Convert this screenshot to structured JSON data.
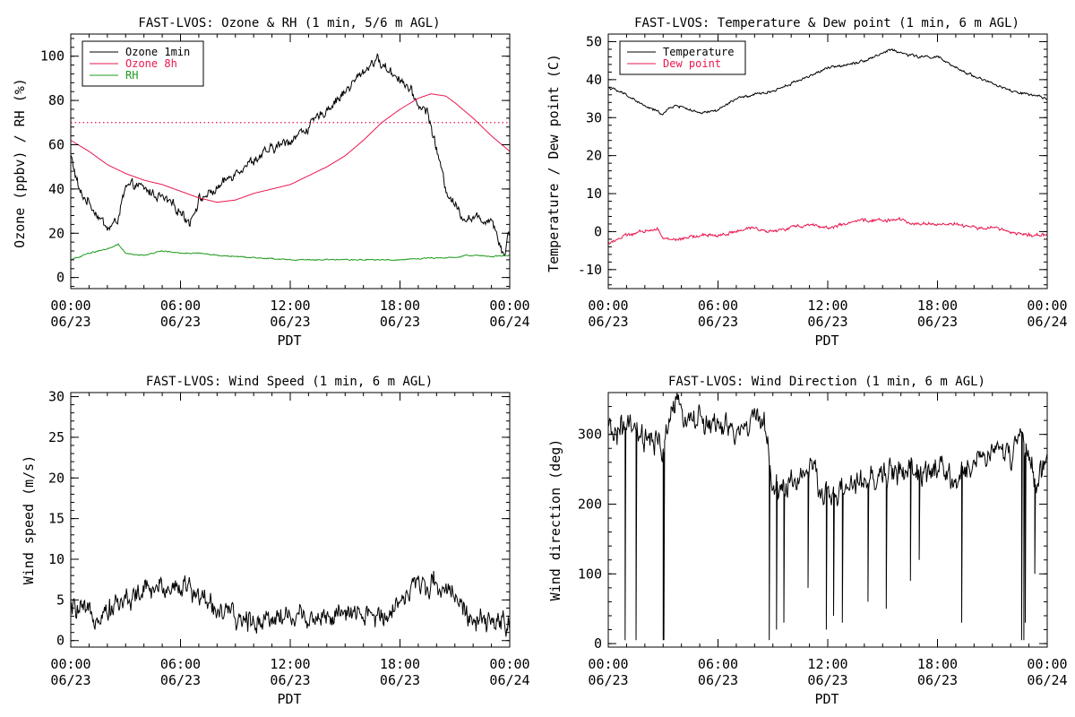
{
  "colors": {
    "black": "#000000",
    "crimson": "#e8174d",
    "green": "#1f9a1f"
  },
  "x_ticks": [
    {
      "t": 0,
      "time": "00:00",
      "date": "06/23"
    },
    {
      "t": 6,
      "time": "06:00",
      "date": "06/23"
    },
    {
      "t": 12,
      "time": "12:00",
      "date": "06/23"
    },
    {
      "t": 18,
      "time": "18:00",
      "date": "06/23"
    },
    {
      "t": 24,
      "time": "00:00",
      "date": "06/24"
    }
  ],
  "chart_data": [
    {
      "id": "ozone",
      "type": "line",
      "title": "FAST-LVOS: Ozone & RH (1 min, 5/6 m AGL)",
      "xlabel": "PDT",
      "ylabel": "Ozone (ppbv) / RH (%)",
      "xlim": [
        0,
        24
      ],
      "ylim": [
        -5,
        110
      ],
      "yticks": [
        0,
        20,
        40,
        60,
        80,
        100
      ],
      "legend_position": "top-left",
      "reference_lines": [
        {
          "y": 70,
          "color": "#e8174d",
          "style": "dotted"
        }
      ],
      "series": [
        {
          "name": "Ozone 1min",
          "color": "#000000",
          "noise": 2.5,
          "x": [
            0,
            0.5,
            1,
            1.5,
            2,
            2.5,
            3,
            3.5,
            4,
            5,
            6,
            6.5,
            7,
            8,
            9,
            10,
            11,
            12,
            13,
            14,
            15,
            16,
            16.7,
            17,
            18,
            18.5,
            19,
            19.5,
            20,
            20.5,
            21,
            21.5,
            22,
            22.5,
            23,
            23.7,
            24
          ],
          "y": [
            55,
            38,
            34,
            28,
            22,
            25,
            40,
            42,
            40,
            36,
            30,
            25,
            35,
            40,
            48,
            53,
            58,
            62,
            68,
            76,
            84,
            93,
            99,
            96,
            90,
            85,
            78,
            75,
            58,
            40,
            33,
            27,
            27,
            26,
            27,
            10,
            22
          ]
        },
        {
          "name": "Ozone 8h",
          "color": "#e8174d",
          "noise": 0,
          "x": [
            0,
            1,
            2,
            3,
            4,
            5,
            6,
            7,
            8,
            9,
            10,
            11,
            12,
            13,
            14,
            15,
            16,
            17,
            18,
            19,
            19.7,
            20.5,
            21,
            22,
            23,
            24
          ],
          "y": [
            62,
            57,
            51,
            47,
            44,
            42,
            39,
            36,
            34,
            35,
            38,
            40,
            42,
            46,
            50,
            55,
            62,
            70,
            76,
            81,
            83,
            82,
            79,
            72,
            64,
            57
          ]
        },
        {
          "name": "RH",
          "color": "#1f9a1f",
          "noise": 0.3,
          "x": [
            0,
            1,
            2,
            2.6,
            3,
            4,
            5,
            6,
            7,
            8,
            10,
            12,
            14,
            16,
            18,
            19,
            20,
            21,
            21.5,
            22,
            23,
            24
          ],
          "y": [
            8,
            11,
            13,
            15,
            11,
            10,
            12,
            11,
            11,
            10,
            9,
            8,
            8,
            8,
            8,
            8.5,
            9,
            9,
            10,
            10,
            9.5,
            10
          ]
        }
      ]
    },
    {
      "id": "temp",
      "type": "line",
      "title": "FAST-LVOS: Temperature & Dew point (1 min, 6 m AGL)",
      "xlabel": "PDT",
      "ylabel": "Temperature / Dew point (C)",
      "xlim": [
        0,
        24
      ],
      "ylim": [
        -15,
        52
      ],
      "yticks": [
        -10,
        0,
        10,
        20,
        30,
        40,
        50
      ],
      "legend_position": "top-left",
      "reference_lines": [],
      "series": [
        {
          "name": "Temperature",
          "color": "#000000",
          "noise": 0.4,
          "x": [
            0,
            1,
            2,
            3,
            3.5,
            4,
            5,
            6,
            7,
            8,
            9,
            10,
            11,
            12,
            13,
            14,
            15,
            15.5,
            16,
            17,
            18,
            19,
            20,
            21,
            22,
            23,
            24
          ],
          "y": [
            38,
            36,
            33,
            31,
            33,
            33,
            31,
            32,
            35,
            36,
            37,
            39,
            41,
            43,
            44,
            45,
            47,
            48,
            47,
            46,
            46,
            43,
            41,
            39,
            37,
            36,
            35
          ]
        },
        {
          "name": "Dew point",
          "color": "#e8174d",
          "noise": 0.5,
          "x": [
            0,
            1,
            2,
            2.7,
            3,
            4,
            5,
            6,
            7,
            8,
            9,
            10,
            11,
            12,
            13,
            14,
            15,
            16,
            17,
            18,
            19,
            20,
            21,
            22,
            23,
            24
          ],
          "y": [
            -3,
            -1,
            0,
            1,
            -2,
            -2,
            -1,
            -1,
            0,
            1,
            0,
            1,
            2,
            1,
            2,
            3,
            3,
            3,
            2,
            2,
            2,
            1,
            1,
            0,
            -1,
            -1
          ]
        }
      ]
    },
    {
      "id": "wspd",
      "type": "line",
      "title": "FAST-LVOS: Wind Speed (1 min, 6 m AGL)",
      "xlabel": "PDT",
      "ylabel": "Wind speed (m/s)",
      "xlim": [
        0,
        24
      ],
      "ylim": [
        -0.8,
        30.5
      ],
      "yticks": [
        0,
        5,
        10,
        15,
        20,
        25,
        30
      ],
      "legend_position": "none",
      "reference_lines": [],
      "series": [
        {
          "name": "",
          "color": "#000000",
          "noise": 1.6,
          "x": [
            0,
            1,
            2,
            3,
            4,
            5,
            6,
            7,
            8,
            9,
            10,
            11,
            12,
            13,
            14,
            15,
            16,
            17,
            18,
            19,
            20,
            21,
            22,
            23,
            24
          ],
          "y": [
            4,
            3,
            4,
            5,
            6,
            6.5,
            7,
            5.5,
            4,
            2.5,
            2.5,
            3,
            3,
            3,
            3,
            3,
            3,
            3,
            5,
            7,
            7,
            6,
            2,
            2,
            2.5
          ]
        }
      ]
    },
    {
      "id": "wdir",
      "type": "line",
      "title": "FAST-LVOS: Wind Direction (1 min, 6 m AGL)",
      "xlabel": "PDT",
      "ylabel": "Wind direction (deg)",
      "xlim": [
        0,
        24
      ],
      "ylim": [
        -5,
        360
      ],
      "yticks": [
        0,
        100,
        200,
        300
      ],
      "legend_position": "none",
      "reference_lines": [],
      "series": [
        {
          "name": "",
          "color": "#000000",
          "noise": 22,
          "x": [
            0,
            1,
            2,
            3,
            3.5,
            4,
            5,
            6,
            7,
            8,
            8.5,
            9,
            10,
            11,
            12,
            13,
            14,
            15,
            16,
            17,
            18,
            19,
            20,
            21,
            22,
            22.5,
            23,
            23.5,
            24
          ],
          "y": [
            300,
            310,
            290,
            280,
            340,
            330,
            320,
            310,
            300,
            320,
            330,
            220,
            230,
            250,
            210,
            220,
            230,
            240,
            250,
            240,
            250,
            230,
            260,
            280,
            270,
            300,
            260,
            220,
            280
          ],
          "dropouts": [
            [
              0.9,
              5
            ],
            [
              1.5,
              5
            ],
            [
              3.0,
              5
            ],
            [
              3.05,
              5
            ],
            [
              8.8,
              5
            ],
            [
              9.2,
              20
            ],
            [
              9.6,
              30
            ],
            [
              10.9,
              80
            ],
            [
              11.9,
              20
            ],
            [
              12.3,
              40
            ],
            [
              12.8,
              30
            ],
            [
              14.2,
              60
            ],
            [
              15.2,
              50
            ],
            [
              16.5,
              90
            ],
            [
              17.0,
              120
            ],
            [
              19.3,
              30
            ],
            [
              22.6,
              5
            ],
            [
              22.7,
              5
            ],
            [
              22.8,
              30
            ],
            [
              23.3,
              100
            ]
          ]
        }
      ]
    }
  ]
}
